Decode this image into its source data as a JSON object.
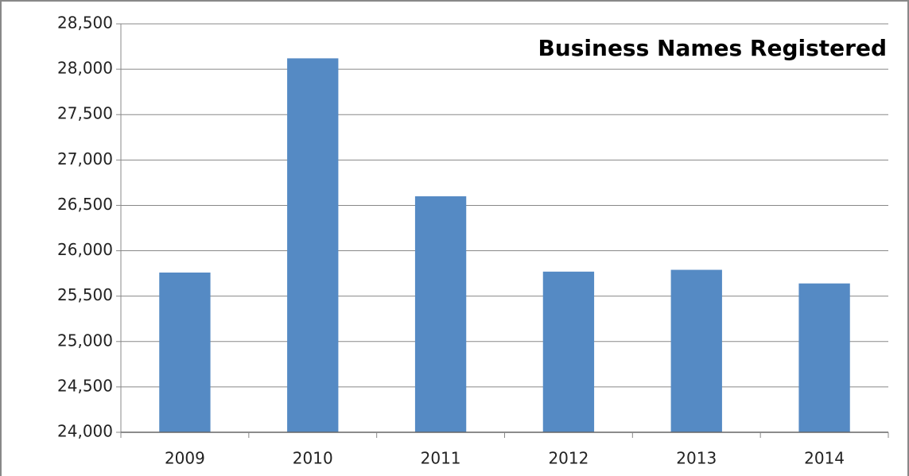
{
  "chart_data": {
    "type": "bar",
    "title": "Business Names Registered",
    "categories": [
      "2009",
      "2010",
      "2011",
      "2012",
      "2013",
      "2014"
    ],
    "values": [
      25760,
      28120,
      26600,
      25770,
      25790,
      25640
    ],
    "color": "#558ac4",
    "ylim": [
      24000,
      28500
    ],
    "yticks": [
      {
        "value": 24000,
        "label": "24,000"
      },
      {
        "value": 24500,
        "label": "24,500"
      },
      {
        "value": 25000,
        "label": "25,000"
      },
      {
        "value": 25500,
        "label": "25,500"
      },
      {
        "value": 26000,
        "label": "26,000"
      },
      {
        "value": 26500,
        "label": "26,500"
      },
      {
        "value": 27000,
        "label": "27,000"
      },
      {
        "value": 27500,
        "label": "27,500"
      },
      {
        "value": 28000,
        "label": "28,000"
      },
      {
        "value": 28500,
        "label": "28,500"
      }
    ],
    "grid": true
  }
}
